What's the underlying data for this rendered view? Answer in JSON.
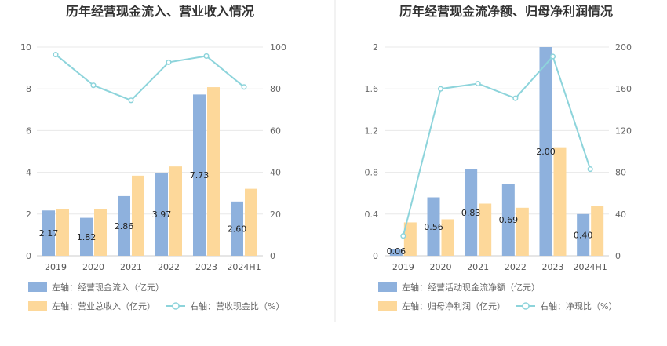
{
  "chart_data": [
    {
      "type": "bar",
      "title": "历年经营现金流入、营业收入情况",
      "categories": [
        "2019",
        "2020",
        "2021",
        "2022",
        "2023",
        "2024H1"
      ],
      "left_axis": {
        "ylim": [
          0,
          10
        ],
        "ticks": [
          "0",
          "2",
          "4",
          "6",
          "8",
          "10"
        ]
      },
      "right_axis": {
        "ylim": [
          0,
          100
        ],
        "ticks": [
          "0",
          "20",
          "40",
          "60",
          "80",
          "100"
        ]
      },
      "series": [
        {
          "name": "左轴：经营现金流入（亿元）",
          "type": "bar",
          "axis": "left",
          "color": "#8eb1dd",
          "values": [
            2.17,
            1.82,
            2.86,
            3.97,
            7.73,
            2.6
          ],
          "labels": [
            "2.17",
            "1.82",
            "2.86",
            "3.97",
            "7.73",
            "2.60"
          ]
        },
        {
          "name": "左轴：营业总收入（亿元）",
          "type": "bar",
          "axis": "left",
          "color": "#fdd89a",
          "values": [
            2.25,
            2.22,
            3.84,
            4.28,
            8.08,
            3.21
          ]
        },
        {
          "name": "右轴：营收现金比（%）",
          "type": "line",
          "axis": "right",
          "color": "#8dd4db",
          "values": [
            96.4,
            81.7,
            74.5,
            92.7,
            95.7,
            80.9
          ]
        }
      ],
      "legend": "bottom"
    },
    {
      "type": "bar",
      "title": "历年经营现金流净额、归母净利润情况",
      "categories": [
        "2019",
        "2020",
        "2021",
        "2022",
        "2023",
        "2024H1"
      ],
      "left_axis": {
        "ylim": [
          0,
          2
        ],
        "ticks": [
          "0",
          "0.4",
          "0.8",
          "1.2",
          "1.6",
          "2"
        ]
      },
      "right_axis": {
        "ylim": [
          0,
          200
        ],
        "ticks": [
          "0",
          "40",
          "80",
          "120",
          "160",
          "200"
        ]
      },
      "series": [
        {
          "name": "左轴：经营活动现金流净额（亿元）",
          "type": "bar",
          "axis": "left",
          "color": "#8eb1dd",
          "values": [
            0.06,
            0.56,
            0.83,
            0.69,
            2.0,
            0.4
          ],
          "labels": [
            "0.06",
            "0.56",
            "0.83",
            "0.69",
            "2.00",
            "0.40"
          ]
        },
        {
          "name": "左轴：归母净利润（亿元）",
          "type": "bar",
          "axis": "left",
          "color": "#fdd89a",
          "values": [
            0.32,
            0.35,
            0.5,
            0.46,
            1.04,
            0.48
          ]
        },
        {
          "name": "右轴：净现比（%）",
          "type": "line",
          "axis": "right",
          "color": "#8dd4db",
          "values": [
            19,
            160,
            165,
            151,
            191,
            83
          ]
        }
      ],
      "legend": "bottom"
    }
  ]
}
